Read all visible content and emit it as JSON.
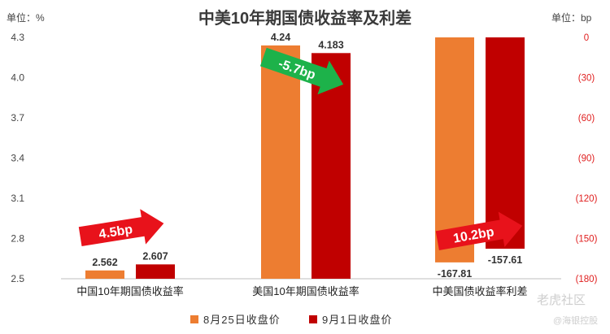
{
  "chart_data": {
    "type": "bar",
    "title": "中美10年期国债收益率及利差",
    "left_unit": "单位：%",
    "right_unit": "单位：bp",
    "categories": [
      "中国10年期国债收益率",
      "美国10年期国债收益率",
      "中美国债收益率利差"
    ],
    "series": [
      {
        "name": "8月25日收盘价",
        "color": "#ed7d31",
        "values": [
          2.562,
          4.24,
          -167.81
        ],
        "labels": [
          "2.562",
          "4.24",
          "-167.81"
        ]
      },
      {
        "name": "9月1日收盘价",
        "color": "#c00000",
        "values": [
          2.607,
          4.183,
          -157.61
        ],
        "labels": [
          "2.607",
          "4.183",
          "-157.61"
        ]
      }
    ],
    "left_axis": {
      "range": [
        2.5,
        4.3
      ],
      "ticks": [
        "2.5",
        "2.8",
        "3.1",
        "3.4",
        "3.7",
        "4.0",
        "4.3"
      ]
    },
    "right_axis": {
      "range": [
        0,
        -180
      ],
      "ticks": [
        "0",
        "(30)",
        "(60)",
        "(90)",
        "(120)",
        "(150)",
        "(180)"
      ],
      "color": "#e02020"
    },
    "annotations": [
      {
        "text": "4.5bp",
        "color": "#e8121b"
      },
      {
        "text": "-5.7bp",
        "color": "#1db24a"
      },
      {
        "text": "10.2bp",
        "color": "#e8121b"
      }
    ],
    "grid": false,
    "legend_position": "bottom"
  },
  "watermark": {
    "brand": "老虎社区",
    "handle": "@海银控股"
  }
}
